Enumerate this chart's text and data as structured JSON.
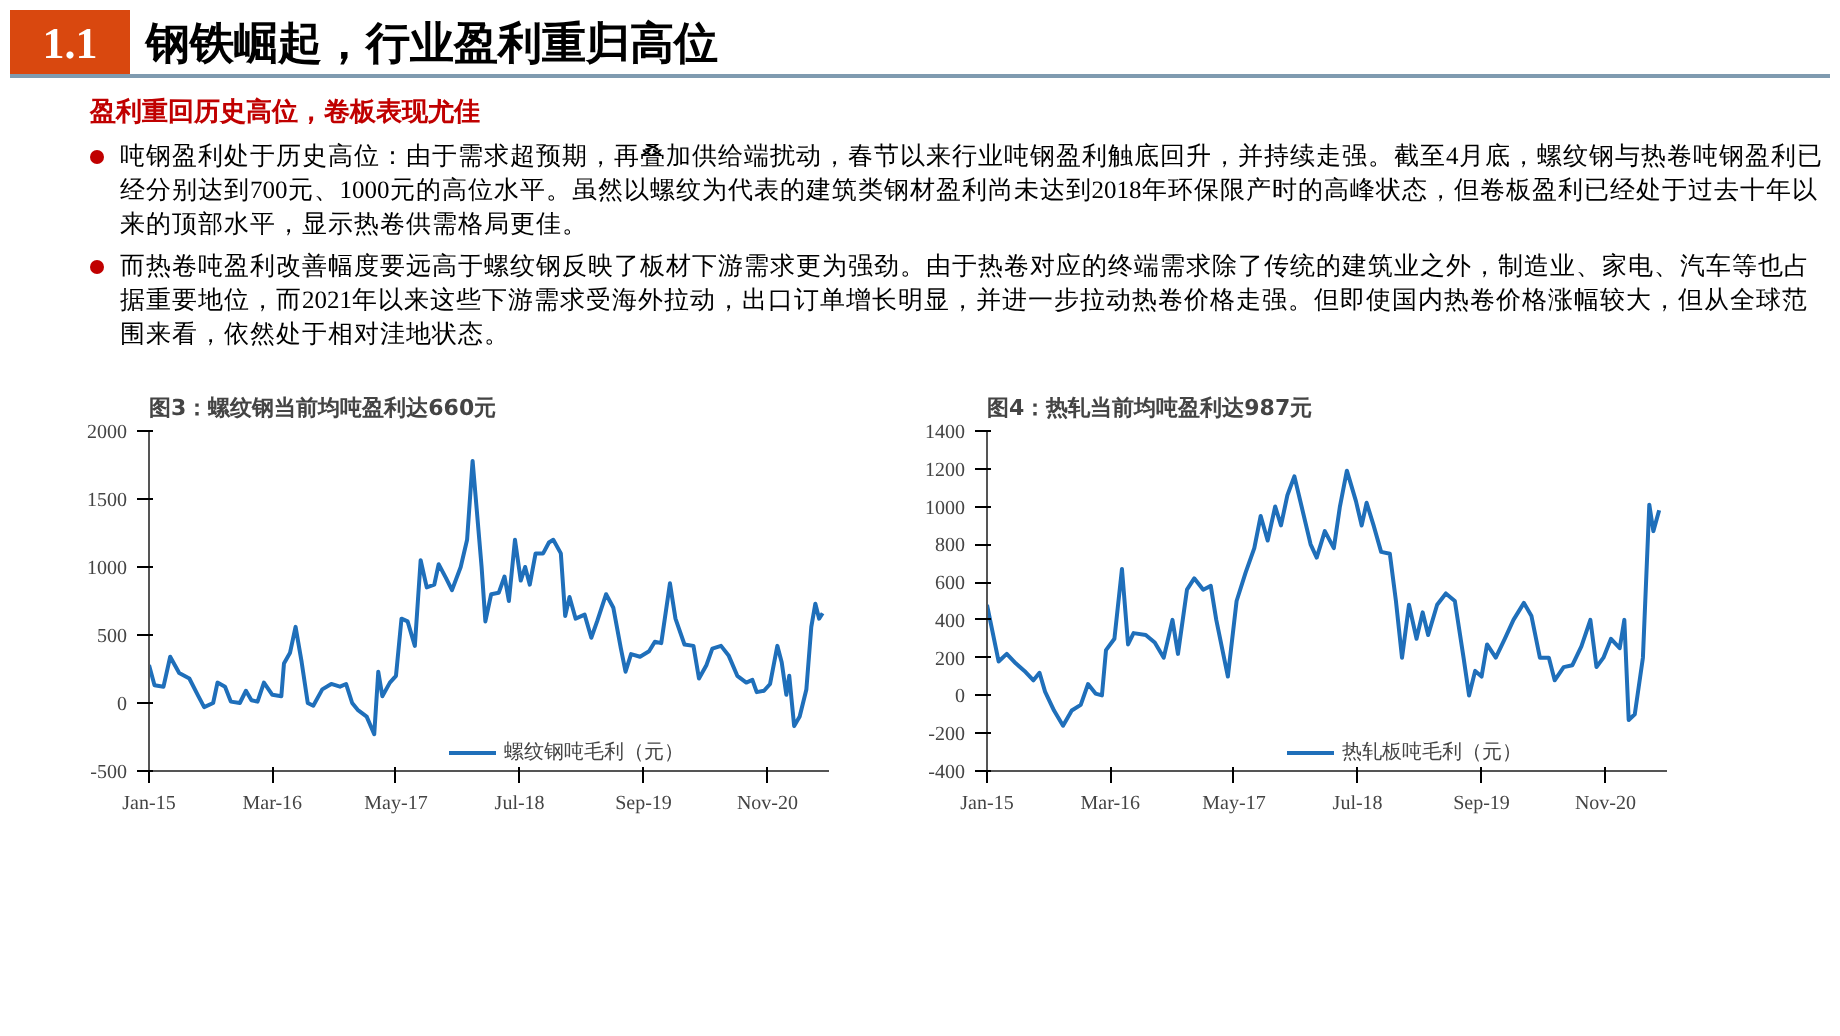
{
  "chart_data": [
    {
      "type": "other",
      "title": "钢铁崛起，行业盈利重归高位",
      "subtitle": "盈利重回历史高位，卷板表现尤佳",
      "annotations": [
        "1.1",
        "吨钢盈利处于历史高位：由于需求超预期，再叠加供给端扰动，春节以来行业吨钢盈利触底回升，并持续走强。截至4月底，螺纹钢与热卷吨钢盈利已经分别达到700元、1000元的高位水平。虽然以螺纹为代表的建筑类钢材盈利尚未达到2018年环保限产时的高峰状态，但卷板盈利已经处于过去十年以来的顶部水平，显示热卷供需格局更佳。",
        "而热卷吨盈利改善幅度要远高于螺纹钢反映了板材下游需求更为强劲。由于热卷对应的终端需求除了传统的建筑业之外，制造业、家电、汽车等也占据重要地位，而2021年以来这些下游需求受海外拉动，出口订单增长明显，并进一步拉动热卷价格走强。但即使国内热卷价格涨幅较大，但从全球范围来看，依然处于相对洼地状态。"
      ]
    },
    {
      "type": "line",
      "title": "图3：螺纹钢当前均吨盈利达660元",
      "legend": "bottom",
      "grid": false,
      "xlim": [
        "2015-01-01",
        "2021-06-01"
      ],
      "xticks": [
        {
          "value": "2015-01",
          "label": "Jan-15"
        },
        {
          "value": "2016-03",
          "label": "Mar-16"
        },
        {
          "value": "2017-05",
          "label": "May-17"
        },
        {
          "value": "2018-07",
          "label": "Jul-18"
        },
        {
          "value": "2019-09",
          "label": "Sep-19"
        },
        {
          "value": "2020-11",
          "label": "Nov-20"
        }
      ],
      "ylim": [
        -500,
        2000
      ],
      "yticks": [
        -500,
        0,
        500,
        1000,
        1500,
        2000
      ],
      "series": [
        {
          "name": "螺纹钢吨毛利（元）",
          "color": "#1f6fba",
          "x": [
            "2015-01-01",
            "2015-01-20",
            "2015-02-20",
            "2015-03-15",
            "2015-04-15",
            "2015-05-20",
            "2015-06-20",
            "2015-07-10",
            "2015-08-10",
            "2015-08-25",
            "2015-09-20",
            "2015-10-10",
            "2015-11-10",
            "2015-12-01",
            "2015-12-20",
            "2016-01-10",
            "2016-02-01",
            "2016-03-01",
            "2016-04-01",
            "2016-04-10",
            "2016-05-01",
            "2016-05-20",
            "2016-06-10",
            "2016-07-01",
            "2016-07-20",
            "2016-08-20",
            "2016-09-20",
            "2016-10-20",
            "2016-11-10",
            "2016-12-01",
            "2016-12-20",
            "2017-01-20",
            "2017-02-15",
            "2017-03-01",
            "2017-03-15",
            "2017-04-10",
            "2017-05-01",
            "2017-05-20",
            "2017-06-10",
            "2017-07-05",
            "2017-07-25",
            "2017-08-15",
            "2017-09-10",
            "2017-09-25",
            "2017-10-20",
            "2017-11-10",
            "2017-12-10",
            "2018-01-01",
            "2018-01-20",
            "2018-02-20",
            "2018-03-05",
            "2018-03-25",
            "2018-04-20",
            "2018-05-10",
            "2018-05-25",
            "2018-06-15",
            "2018-07-05",
            "2018-07-20",
            "2018-08-05",
            "2018-08-25",
            "2018-09-20",
            "2018-10-10",
            "2018-10-25",
            "2018-11-20",
            "2018-12-05",
            "2018-12-20",
            "2019-01-10",
            "2019-02-10",
            "2019-03-05",
            "2019-03-25",
            "2019-04-25",
            "2019-05-20",
            "2019-06-15",
            "2019-07-01",
            "2019-07-20",
            "2019-08-20",
            "2019-09-20",
            "2019-10-10",
            "2019-11-01",
            "2019-12-01",
            "2019-12-20",
            "2020-01-20",
            "2020-02-20",
            "2020-03-10",
            "2020-04-05",
            "2020-04-25",
            "2020-05-25",
            "2020-06-20",
            "2020-07-20",
            "2020-08-20",
            "2020-09-10",
            "2020-09-25",
            "2020-10-20",
            "2020-11-10",
            "2020-12-05",
            "2020-12-20",
            "2021-01-05",
            "2021-01-15",
            "2021-02-01",
            "2021-02-20",
            "2021-03-15",
            "2021-04-01",
            "2021-04-15",
            "2021-04-28",
            "2021-05-10"
          ],
          "values": [
            280,
            130,
            120,
            340,
            220,
            180,
            50,
            -30,
            0,
            150,
            120,
            10,
            0,
            90,
            20,
            10,
            150,
            60,
            50,
            290,
            370,
            560,
            300,
            0,
            -20,
            100,
            140,
            120,
            140,
            0,
            -50,
            -100,
            -230,
            230,
            50,
            150,
            200,
            620,
            600,
            420,
            1050,
            850,
            870,
            1020,
            920,
            830,
            1000,
            1200,
            1780,
            1000,
            600,
            800,
            810,
            930,
            750,
            1200,
            900,
            1000,
            870,
            1100,
            1100,
            1180,
            1200,
            1100,
            640,
            780,
            620,
            650,
            480,
            600,
            800,
            700,
            400,
            230,
            360,
            340,
            380,
            450,
            440,
            880,
            620,
            430,
            420,
            180,
            280,
            400,
            420,
            350,
            200,
            150,
            170,
            80,
            90,
            140,
            420,
            300,
            60,
            200,
            -170,
            -100,
            100,
            560,
            730,
            620,
            660
          ]
        }
      ]
    },
    {
      "type": "line",
      "title": "图4：热轧当前均吨盈利达987元",
      "legend": "bottom",
      "grid": false,
      "xlim": [
        "2015-01-01",
        "2021-06-01"
      ],
      "xticks": [
        {
          "value": "2015-01",
          "label": "Jan-15"
        },
        {
          "value": "2016-03",
          "label": "Mar-16"
        },
        {
          "value": "2017-05",
          "label": "May-17"
        },
        {
          "value": "2018-07",
          "label": "Jul-18"
        },
        {
          "value": "2019-09",
          "label": "Sep-19"
        },
        {
          "value": "2020-11",
          "label": "Nov-20"
        }
      ],
      "ylim": [
        -400,
        1400
      ],
      "yticks": [
        -400,
        -200,
        0,
        200,
        400,
        600,
        800,
        1000,
        1200,
        1400
      ],
      "series": [
        {
          "name": "热轧板吨毛利（元）",
          "color": "#1f6fba",
          "x": [
            "2015-01-01",
            "2015-02-10",
            "2015-03-10",
            "2015-04-10",
            "2015-05-10",
            "2015-06-10",
            "2015-07-01",
            "2015-07-20",
            "2015-08-20",
            "2015-09-20",
            "2015-10-20",
            "2015-11-20",
            "2015-12-15",
            "2016-01-10",
            "2016-02-01",
            "2016-02-15",
            "2016-03-15",
            "2016-04-10",
            "2016-05-01",
            "2016-05-20",
            "2016-07-01",
            "2016-08-01",
            "2016-09-01",
            "2016-10-01",
            "2016-10-20",
            "2016-11-20",
            "2016-12-15",
            "2017-01-15",
            "2017-02-10",
            "2017-03-01",
            "2017-04-10",
            "2017-05-10",
            "2017-06-10",
            "2017-07-10",
            "2017-08-01",
            "2017-08-25",
            "2017-09-20",
            "2017-10-10",
            "2017-11-01",
            "2017-11-25",
            "2017-12-20",
            "2018-01-20",
            "2018-02-10",
            "2018-03-10",
            "2018-04-10",
            "2018-05-01",
            "2018-05-25",
            "2018-06-25",
            "2018-07-15",
            "2018-08-01",
            "2018-08-25",
            "2018-09-20",
            "2018-10-20",
            "2018-11-10",
            "2018-12-01",
            "2018-12-25",
            "2019-01-20",
            "2019-02-10",
            "2019-03-01",
            "2019-04-01",
            "2019-05-01",
            "2019-06-01",
            "2019-07-01",
            "2019-07-20",
            "2019-08-10",
            "2019-09-01",
            "2019-09-20",
            "2019-10-20",
            "2019-11-20",
            "2019-12-20",
            "2020-01-25",
            "2020-02-20",
            "2020-03-20",
            "2020-04-20",
            "2020-05-10",
            "2020-06-10",
            "2020-07-10",
            "2020-08-10",
            "2020-09-10",
            "2020-10-01",
            "2020-10-25",
            "2020-11-20",
            "2020-12-20",
            "2021-01-05",
            "2021-01-20",
            "2021-02-10",
            "2021-03-10",
            "2021-04-01",
            "2021-04-15",
            "2021-05-05"
          ],
          "values": [
            480,
            180,
            220,
            170,
            130,
            80,
            120,
            20,
            -80,
            -160,
            -80,
            -50,
            60,
            10,
            0,
            240,
            300,
            670,
            270,
            330,
            320,
            280,
            200,
            400,
            220,
            560,
            620,
            560,
            580,
            400,
            100,
            500,
            650,
            780,
            950,
            820,
            1000,
            900,
            1060,
            1160,
            1000,
            800,
            730,
            870,
            780,
            1000,
            1190,
            1030,
            900,
            1020,
            900,
            760,
            750,
            500,
            200,
            480,
            300,
            440,
            320,
            480,
            540,
            500,
            200,
            0,
            130,
            100,
            270,
            200,
            300,
            400,
            490,
            420,
            200,
            200,
            80,
            150,
            160,
            260,
            400,
            150,
            200,
            300,
            250,
            400,
            -130,
            -100,
            200,
            1010,
            870,
            980
          ]
        }
      ]
    }
  ]
}
